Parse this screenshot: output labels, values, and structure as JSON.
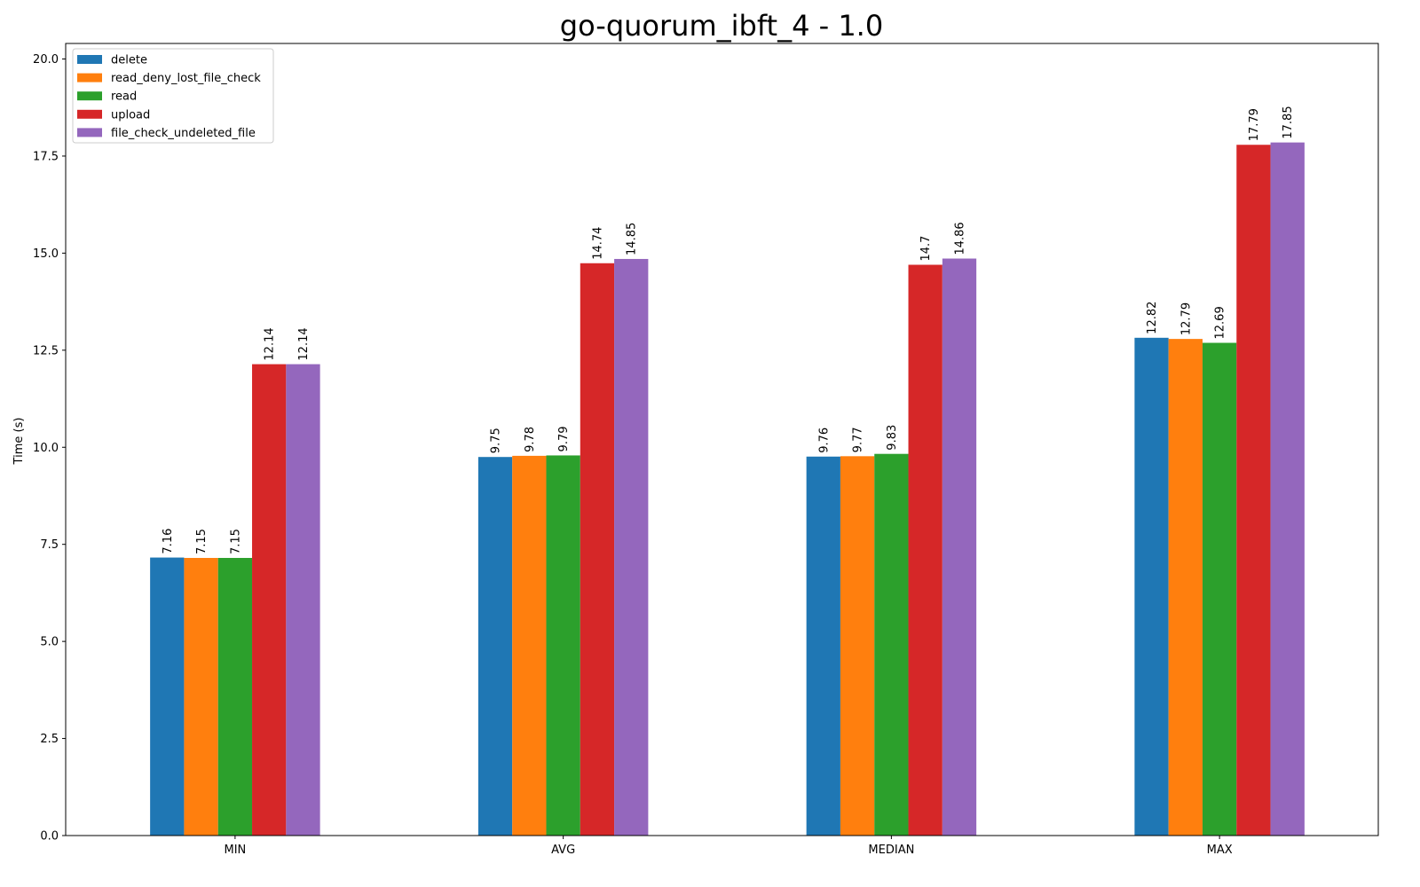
{
  "chart_data": {
    "type": "bar",
    "title": "go-quorum_ibft_4 - 1.0",
    "xlabel": "",
    "ylabel": "Time (s)",
    "ylim": [
      0,
      20.4
    ],
    "yticks": [
      "0.0",
      "2.5",
      "5.0",
      "7.5",
      "10.0",
      "12.5",
      "15.0",
      "17.5",
      "20.0"
    ],
    "categories": [
      "MIN",
      "AVG",
      "MEDIAN",
      "MAX"
    ],
    "legend_position": "top-left",
    "grid": false,
    "series": [
      {
        "name": "delete",
        "color": "#1f77b4",
        "values": [
          7.16,
          9.75,
          9.76,
          12.82
        ],
        "labels": [
          "7.16",
          "9.75",
          "9.76",
          "12.82"
        ]
      },
      {
        "name": "read_deny_lost_file_check",
        "color": "#ff7f0e",
        "values": [
          7.15,
          9.78,
          9.77,
          12.79
        ],
        "labels": [
          "7.15",
          "9.78",
          "9.77",
          "12.79"
        ]
      },
      {
        "name": "read",
        "color": "#2ca02c",
        "values": [
          7.15,
          9.79,
          9.83,
          12.69
        ],
        "labels": [
          "7.15",
          "9.79",
          "9.83",
          "12.69"
        ]
      },
      {
        "name": "upload",
        "color": "#d62728",
        "values": [
          12.14,
          14.74,
          14.7,
          17.79
        ],
        "labels": [
          "12.14",
          "14.74",
          "14.7",
          "17.79"
        ]
      },
      {
        "name": "file_check_undeleted_file",
        "color": "#9467bd",
        "values": [
          12.14,
          14.85,
          14.86,
          17.85
        ],
        "labels": [
          "12.14",
          "14.85",
          "14.86",
          "17.85"
        ]
      }
    ]
  }
}
